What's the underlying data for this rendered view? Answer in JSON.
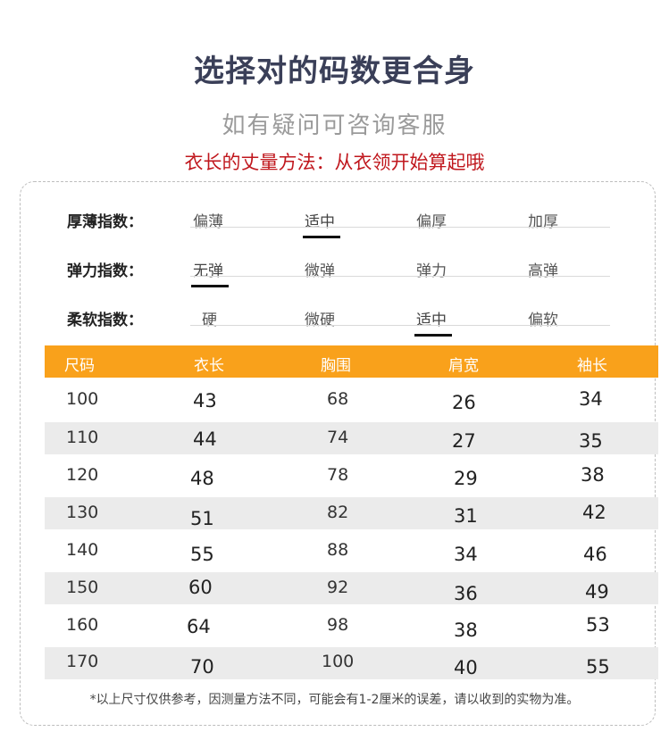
{
  "header": {
    "title": "选择对的码数更合身",
    "subtitle": "如有疑问可咨询客服",
    "measure_note": "衣长的丈量方法：从衣领开始算起哦"
  },
  "indices": [
    {
      "label": "厚薄指数：",
      "options": [
        "偏薄",
        "适中",
        "偏厚",
        "加厚"
      ],
      "selected": "适中"
    },
    {
      "label": "弹力指数：",
      "options": [
        "无弹",
        "微弹",
        "弹力",
        "高弹"
      ],
      "selected": "无弹"
    },
    {
      "label": "柔软指数：",
      "options": [
        "硬",
        "微硬",
        "适中",
        "偏软"
      ],
      "selected": "适中"
    }
  ],
  "table": {
    "headers": [
      "尺码",
      "衣长",
      "胸围",
      "肩宽",
      "袖长"
    ],
    "rows": [
      [
        "100",
        "43",
        "68",
        "26",
        "34"
      ],
      [
        "110",
        "44",
        "74",
        "27",
        "35"
      ],
      [
        "120",
        "48",
        "78",
        "29",
        "38"
      ],
      [
        "130",
        "51",
        "82",
        "31",
        "42"
      ],
      [
        "140",
        "55",
        "88",
        "34",
        "46"
      ],
      [
        "150",
        "60",
        "92",
        "36",
        "49"
      ],
      [
        "160",
        "64",
        "98",
        "38",
        "53"
      ],
      [
        "170",
        "70",
        "100",
        "40",
        "55"
      ]
    ]
  },
  "footnote": "*以上尺寸仅供参考，因测量方法不同，可能会有1-2厘米的误差，请以收到的实物为准。"
}
